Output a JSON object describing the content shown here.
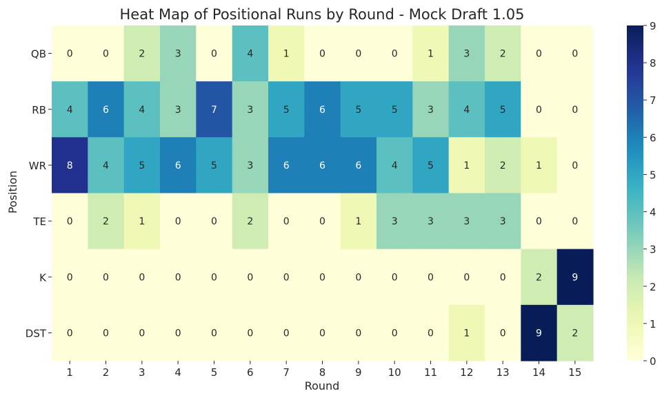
{
  "chart_data": {
    "type": "heatmap",
    "title": "Heat Map of Positional Runs by Round - Mock Draft 1.05",
    "xlabel": "Round",
    "ylabel": "Position",
    "x_categories": [
      "1",
      "2",
      "3",
      "4",
      "5",
      "6",
      "7",
      "8",
      "9",
      "10",
      "11",
      "12",
      "13",
      "14",
      "15"
    ],
    "y_categories": [
      "QB",
      "RB",
      "WR",
      "TE",
      "K",
      "DST"
    ],
    "values": [
      [
        0,
        0,
        2,
        3,
        0,
        4,
        1,
        0,
        0,
        0,
        1,
        3,
        2,
        0,
        0
      ],
      [
        4,
        6,
        4,
        3,
        7,
        3,
        5,
        6,
        5,
        5,
        3,
        4,
        5,
        0,
        0
      ],
      [
        8,
        4,
        5,
        6,
        5,
        3,
        6,
        6,
        6,
        4,
        5,
        1,
        2,
        1,
        0
      ],
      [
        0,
        2,
        1,
        0,
        0,
        2,
        0,
        0,
        1,
        3,
        3,
        3,
        3,
        0,
        0
      ],
      [
        0,
        0,
        0,
        0,
        0,
        0,
        0,
        0,
        0,
        0,
        0,
        0,
        0,
        2,
        9
      ],
      [
        0,
        0,
        0,
        0,
        0,
        0,
        0,
        0,
        0,
        0,
        0,
        1,
        0,
        9,
        2
      ]
    ],
    "color_range": [
      0,
      9
    ],
    "colorbar_ticks": [
      "0",
      "1",
      "2",
      "3",
      "4",
      "5",
      "6",
      "7",
      "8",
      "9"
    ],
    "colormap": "YlGnBu",
    "annotated": true,
    "grid": false
  }
}
